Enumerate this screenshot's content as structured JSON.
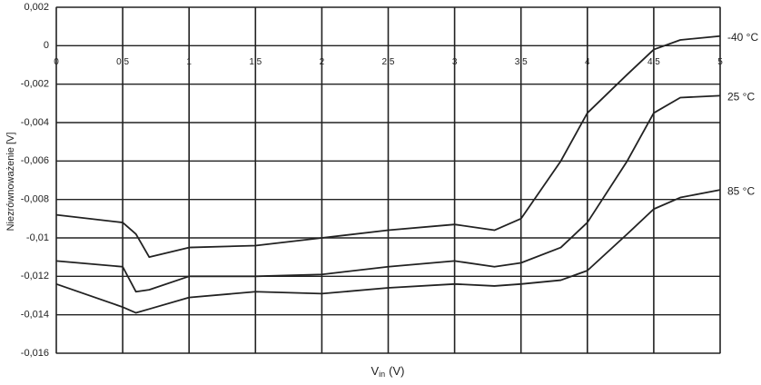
{
  "chart_data": {
    "type": "line",
    "y_label": "Niezrównoważenie [V]",
    "x_label": {
      "main": "V",
      "sub": "in",
      "unit": "(V)"
    },
    "x": [
      0,
      0.5,
      0.6,
      0.7,
      1,
      1.5,
      2,
      2.5,
      3,
      3.3,
      3.5,
      3.8,
      4,
      4.3,
      4.5,
      4.7,
      5
    ],
    "series": [
      {
        "name": "-40 °C",
        "color": "#222222",
        "values": [
          -0.0088,
          -0.0092,
          -0.0098,
          -0.011,
          -0.0105,
          -0.0104,
          -0.01,
          -0.0096,
          -0.0093,
          -0.0096,
          -0.009,
          -0.006,
          -0.0035,
          -0.0015,
          -0.0002,
          0.0003,
          0.0005
        ]
      },
      {
        "name": "25 °C",
        "color": "#222222",
        "values": [
          -0.0112,
          -0.0115,
          -0.0128,
          -0.0127,
          -0.012,
          -0.012,
          -0.0119,
          -0.0115,
          -0.0112,
          -0.0115,
          -0.0113,
          -0.0105,
          -0.0092,
          -0.006,
          -0.0035,
          -0.0027,
          -0.0026
        ]
      },
      {
        "name": "85 °C",
        "color": "#222222",
        "values": [
          -0.0124,
          -0.0136,
          -0.0139,
          -0.0137,
          -0.0131,
          -0.0128,
          -0.0129,
          -0.0126,
          -0.0124,
          -0.0125,
          -0.0124,
          -0.0122,
          -0.0117,
          -0.0098,
          -0.0085,
          -0.0079,
          -0.0075
        ]
      }
    ],
    "xlim": [
      0,
      5
    ],
    "xticks": [
      0,
      {
        "value": 0.5,
        "label": "0,5"
      },
      1,
      {
        "value": 1.5,
        "label": "1,5"
      },
      2,
      {
        "value": 2.5,
        "label": "2,5"
      },
      3,
      {
        "value": 3.5,
        "label": "3,5"
      },
      4,
      {
        "value": 4.5,
        "label": "4,5"
      },
      5
    ],
    "ylim": [
      -0.016,
      0.002
    ],
    "yticks": [
      {
        "value": 0.002,
        "label": "0,002"
      },
      0,
      {
        "value": -0.002,
        "label": "-0,002"
      },
      {
        "value": -0.004,
        "label": "-0,004"
      },
      {
        "value": -0.006,
        "label": "-0,006"
      },
      {
        "value": -0.008,
        "label": "-0,008"
      },
      {
        "value": -0.01,
        "label": "-0,01"
      },
      {
        "value": -0.012,
        "label": "-0,012"
      },
      {
        "value": -0.014,
        "label": "-0,014"
      },
      {
        "value": -0.016,
        "label": "-0,016"
      }
    ],
    "grid": true
  }
}
